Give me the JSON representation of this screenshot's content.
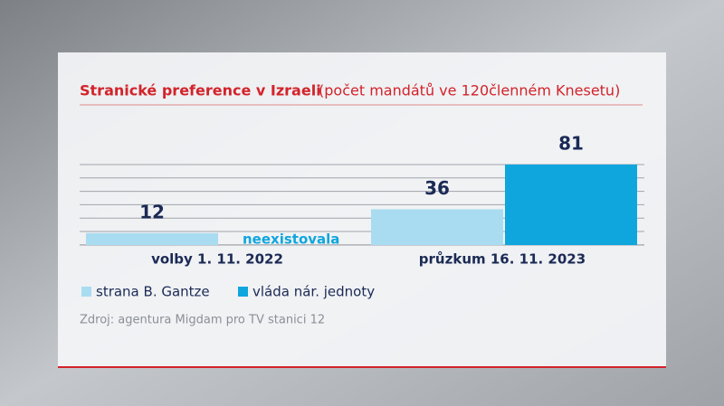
{
  "chart_data": {
    "type": "bar",
    "title": "Stranické preference v Izraeli",
    "subtitle": "(počet mandátů ve 120členném Knesetu)",
    "categories": [
      "volby 1. 11. 2022",
      "průzkum 16. 11. 2023"
    ],
    "series": [
      {
        "name": "strana B. Gantze",
        "color": "#a9dcf1",
        "values": [
          12,
          36
        ]
      },
      {
        "name": "vláda nár. jednoty",
        "color": "#0fa6de",
        "values": [
          null,
          81
        ],
        "value_labels": [
          "neexistovala",
          "81"
        ]
      }
    ],
    "ylim": [
      0,
      81
    ],
    "source": "Zdroj: agentura Migdam pro TV stanici 12"
  }
}
